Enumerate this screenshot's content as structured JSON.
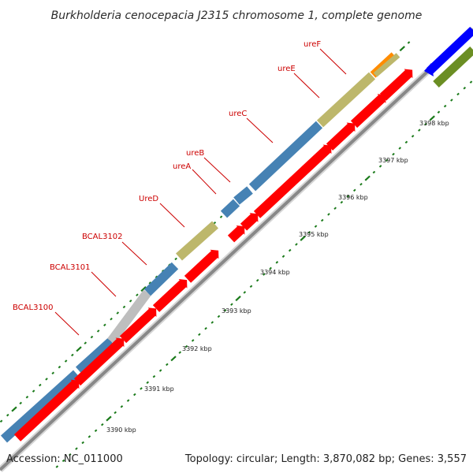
{
  "title": "Burkholderia cenocepacia J2315 chromosome 1, complete genome",
  "footer": {
    "accession": "Accession: NC_011000",
    "summary": "Topology: circular; Length: 3,870,082 bp; Genes: 3,557"
  },
  "colors": {
    "cds": "#ff0000",
    "blue_gene": "#4682b4",
    "olive_gene": "#bdb76b",
    "gray_gene": "#bebebe",
    "orange_gene": "#ff8c00",
    "backbone": "#8a8a8a",
    "tick": "#1a7a1a",
    "label": "#cc0000",
    "other_blue": "#0000ff",
    "other_green": "#6b8e23"
  },
  "genes": [
    {
      "name": "BCAL3100"
    },
    {
      "name": "BCAL3101"
    },
    {
      "name": "BCAL3102"
    },
    {
      "name": "UreD"
    },
    {
      "name": "ureA"
    },
    {
      "name": "ureB"
    },
    {
      "name": "ureC"
    },
    {
      "name": "ureE"
    },
    {
      "name": "ureF"
    }
  ],
  "kbp_labels": [
    "3390 kbp",
    "3391 kbp",
    "3392 kbp",
    "3393 kbp",
    "3394 kbp",
    "3395 kbp",
    "3396 kbp",
    "3397 kbp",
    "3398 kbp"
  ]
}
